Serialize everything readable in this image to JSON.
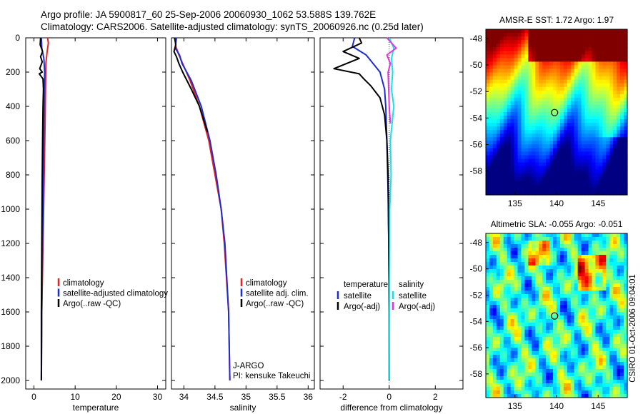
{
  "header": {
    "line1": "Argo profile: JA 5900817_60 25-Sep-2006 20060930_1062 53.588S 139.762E",
    "line2": "Climatology: CARS2006. Satellite-adjusted climatology: synTS_20060926.nc (0.25d later)"
  },
  "footer": "CSIRO 01-Oct-2006 09:04:01",
  "colors": {
    "red": "#e8231f",
    "blue": "#1f2bd6",
    "black": "#000000",
    "cyan": "#19e0e6",
    "magenta": "#ee2ee6"
  },
  "chart_data": [
    {
      "type": "line",
      "title": "",
      "xlabel": "temperature",
      "ylabel": "",
      "xlim": [
        -2,
        32
      ],
      "ylim": [
        2050,
        0
      ],
      "xticks": [
        0,
        10,
        20,
        30
      ],
      "yticks": [
        0,
        200,
        400,
        600,
        800,
        1000,
        1200,
        1400,
        1600,
        1800,
        2000
      ],
      "legend": {
        "placement": "lower-right",
        "entries": [
          {
            "label": "climatology",
            "color": "#e8231f"
          },
          {
            "label": "satellite-adjusted climatology",
            "color": "#1f2bd6"
          },
          {
            "label": "Argo(..raw -QC)",
            "color": "#000000"
          }
        ]
      },
      "series": [
        {
          "name": "climatology",
          "color": "#e8231f",
          "points": [
            [
              3.3,
              0
            ],
            [
              3.5,
              30
            ],
            [
              3.2,
              80
            ],
            [
              2.9,
              150
            ],
            [
              2.8,
              300
            ],
            [
              2.7,
              500
            ],
            [
              2.5,
              800
            ],
            [
              2.2,
              1200
            ],
            [
              1.9,
              1600
            ],
            [
              1.8,
              2000
            ]
          ]
        },
        {
          "name": "satellite-adjusted climatology",
          "color": "#1f2bd6",
          "points": [
            [
              1.8,
              0
            ],
            [
              1.9,
              60
            ],
            [
              2.4,
              120
            ],
            [
              2.6,
              200
            ],
            [
              2.5,
              300
            ],
            [
              2.4,
              500
            ],
            [
              2.3,
              800
            ],
            [
              2.1,
              1200
            ],
            [
              1.9,
              1600
            ],
            [
              1.8,
              2000
            ]
          ]
        },
        {
          "name": "Argo(..raw -QC)",
          "color": "#000000",
          "points": [
            [
              1.6,
              0
            ],
            [
              1.5,
              40
            ],
            [
              2.1,
              80
            ],
            [
              1.6,
              110
            ],
            [
              2.0,
              140
            ],
            [
              1.4,
              180
            ],
            [
              2.0,
              200
            ],
            [
              1.3,
              210
            ],
            [
              2.2,
              240
            ],
            [
              2.3,
              300
            ],
            [
              2.2,
              400
            ],
            [
              2.1,
              600
            ],
            [
              2.0,
              800
            ],
            [
              1.9,
              1200
            ],
            [
              1.8,
              1600
            ],
            [
              1.8,
              2000
            ]
          ]
        }
      ]
    },
    {
      "type": "line",
      "title": "",
      "xlabel": "salinity",
      "ylabel": "",
      "xlim": [
        33.8,
        36.1
      ],
      "ylim": [
        2050,
        0
      ],
      "xticks": [
        34,
        34.5,
        35,
        35.5,
        36
      ],
      "legend": {
        "placement": "lower-right",
        "entries": [
          {
            "label": "climatology",
            "color": "#e8231f"
          },
          {
            "label": "satellite adj. clim.",
            "color": "#1f2bd6"
          },
          {
            "label": "Argo(..raw -QC)",
            "color": "#000000"
          }
        ]
      },
      "annotations": [
        "J-ARGO",
        "PI: kensuke Takeuchi"
      ],
      "series": [
        {
          "name": "climatology",
          "color": "#e8231f",
          "points": [
            [
              33.86,
              0
            ],
            [
              33.87,
              50
            ],
            [
              33.92,
              100
            ],
            [
              33.98,
              150
            ],
            [
              34.1,
              250
            ],
            [
              34.25,
              400
            ],
            [
              34.4,
              600
            ],
            [
              34.5,
              800
            ],
            [
              34.6,
              1000
            ],
            [
              34.65,
              1200
            ],
            [
              34.72,
              1600
            ],
            [
              34.74,
              2000
            ]
          ]
        },
        {
          "name": "satellite-adjusted climatology",
          "color": "#1f2bd6",
          "points": [
            [
              33.88,
              0
            ],
            [
              33.86,
              60
            ],
            [
              33.93,
              100
            ],
            [
              33.97,
              150
            ],
            [
              34.12,
              250
            ],
            [
              34.28,
              400
            ],
            [
              34.42,
              600
            ],
            [
              34.52,
              800
            ],
            [
              34.6,
              1000
            ],
            [
              34.66,
              1200
            ],
            [
              34.72,
              1600
            ],
            [
              34.74,
              2000
            ]
          ]
        },
        {
          "name": "Argo(..raw -QC)",
          "color": "#000000",
          "points": [
            [
              33.85,
              0
            ],
            [
              33.87,
              40
            ],
            [
              33.84,
              80
            ],
            [
              33.88,
              110
            ],
            [
              33.92,
              150
            ],
            [
              33.98,
              200
            ],
            [
              34.12,
              300
            ],
            [
              34.25,
              400
            ],
            [
              34.38,
              550
            ]
          ]
        }
      ]
    },
    {
      "type": "line",
      "title": "",
      "xlabel": "difference from climatology",
      "ylabel": "",
      "xlim": [
        -3,
        3.2
      ],
      "ylim": [
        2050,
        0
      ],
      "xticks": [
        -2,
        0,
        2
      ],
      "legend": {
        "placement": "lower-center",
        "groups": [
          {
            "heading": "temperature",
            "entries": [
              {
                "label": "satellite",
                "color": "#1f2bd6"
              },
              {
                "label": "Argo(-adj)",
                "color": "#000000"
              }
            ]
          },
          {
            "heading": "salinity",
            "entries": [
              {
                "label": "satellite",
                "color": "#19e0e6"
              },
              {
                "label": "Argo(-adj)",
                "color": "#ee2ee6"
              }
            ]
          }
        ]
      },
      "series": [
        {
          "name": "temperature satellite",
          "color": "#1f2bd6",
          "points": [
            [
              -1.5,
              0
            ],
            [
              -1.6,
              50
            ],
            [
              -1.0,
              100
            ],
            [
              -0.7,
              150
            ],
            [
              -0.4,
              200
            ],
            [
              -0.2,
              300
            ],
            [
              -0.15,
              400
            ],
            [
              -0.1,
              600
            ],
            [
              -0.05,
              900
            ],
            [
              -0.02,
              1200
            ],
            [
              0,
              1600
            ],
            [
              0,
              2000
            ]
          ]
        },
        {
          "name": "temperature Argo(-adj)",
          "color": "#000000",
          "points": [
            [
              -1.3,
              0
            ],
            [
              -1.2,
              30
            ],
            [
              -2.0,
              80
            ],
            [
              -1.3,
              120
            ],
            [
              -2.4,
              180
            ],
            [
              -1.3,
              210
            ],
            [
              -1.1,
              240
            ],
            [
              -0.8,
              280
            ],
            [
              -0.4,
              350
            ],
            [
              -0.2,
              450
            ],
            [
              -0.1,
              600
            ],
            [
              -0.05,
              800
            ],
            [
              -0.02,
              1200
            ],
            [
              0,
              1600
            ],
            [
              0,
              2000
            ]
          ]
        },
        {
          "name": "salinity satellite",
          "color": "#19e0e6",
          "points": [
            [
              0.0,
              0
            ],
            [
              0.2,
              60
            ],
            [
              0.1,
              120
            ],
            [
              0.15,
              200
            ],
            [
              0.1,
              300
            ],
            [
              0.2,
              400
            ],
            [
              0.05,
              600
            ],
            [
              0.08,
              800
            ],
            [
              0.02,
              1000
            ],
            [
              0.02,
              1200
            ],
            [
              0,
              2000
            ]
          ]
        },
        {
          "name": "salinity Argo(-adj)",
          "color": "#ee2ee6",
          "points": [
            [
              -0.1,
              0
            ],
            [
              0.3,
              60
            ],
            [
              -0.1,
              100
            ],
            [
              0.05,
              150
            ],
            [
              -0.05,
              200
            ],
            [
              0.0,
              400
            ],
            [
              0.05,
              500
            ]
          ]
        }
      ]
    },
    {
      "type": "heatmap",
      "title": "AMSR-E SST: 1.72 Argo: 1.97",
      "xlim": [
        131.5,
        148.5
      ],
      "ylim": [
        -59.8,
        -47.3
      ],
      "xticks": [
        135,
        140,
        145
      ],
      "yticks": [
        -48,
        -50,
        -52,
        -54,
        -56,
        -58
      ],
      "marker": {
        "x": 139.762,
        "y": -53.588
      }
    },
    {
      "type": "heatmap",
      "title": "Altimetric SLA: -0.055 Argo: -0.051",
      "xlim": [
        131.5,
        148.5
      ],
      "ylim": [
        -59.8,
        -47.3
      ],
      "xticks": [
        135,
        140,
        145
      ],
      "yticks": [
        -48,
        -50,
        -52,
        -54,
        -56,
        -58
      ],
      "marker": {
        "x": 139.762,
        "y": -53.588
      }
    }
  ]
}
